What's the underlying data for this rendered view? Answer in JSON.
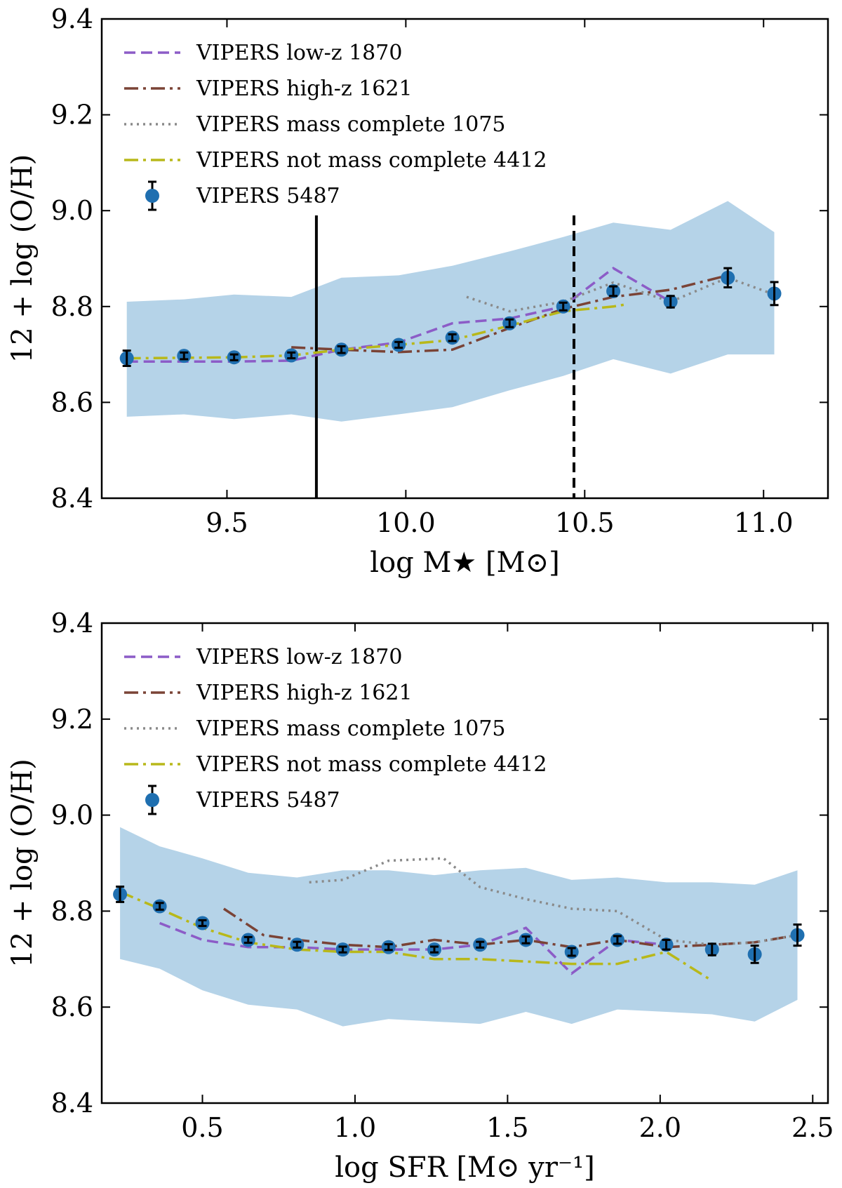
{
  "colors": {
    "low_z": "#8c5cc7",
    "high_z": "#7a4336",
    "mass_complete": "#8a8a8a",
    "not_mass_complete": "#b8b81a",
    "points": "#1f6fb0",
    "band": "#b5d3e8"
  },
  "chart_data": [
    {
      "type": "line",
      "xlabel": "log M★ [M⊙]",
      "ylabel": "12 + log (O/H)",
      "xlim": [
        9.15,
        11.18
      ],
      "ylim": [
        8.4,
        9.4
      ],
      "xticks": [
        9.5,
        10.0,
        10.5,
        11.0
      ],
      "xtick_labels": [
        "9.5",
        "10.0",
        "10.5",
        "11.0"
      ],
      "yticks": [
        8.4,
        8.6,
        8.8,
        9.0,
        9.2,
        9.4
      ],
      "ytick_labels": [
        "8.4",
        "8.6",
        "8.8",
        "9.0",
        "9.2",
        "9.4"
      ],
      "vlines": [
        {
          "x": 9.75,
          "style": "solid"
        },
        {
          "x": 10.47,
          "style": "dashed"
        }
      ],
      "legend": {
        "position": "upper-left",
        "entries": [
          "VIPERS low-z 1870",
          "VIPERS high-z 1621",
          "VIPERS mass complete 1075",
          "VIPERS not mass complete 4412",
          "VIPERS 5487"
        ]
      },
      "band": {
        "name": "scatter",
        "x": [
          9.22,
          9.38,
          9.52,
          9.68,
          9.82,
          9.98,
          10.13,
          10.29,
          10.44,
          10.58,
          10.74,
          10.9,
          11.03
        ],
        "upper": [
          8.81,
          8.815,
          8.825,
          8.82,
          8.86,
          8.865,
          8.885,
          8.915,
          8.945,
          8.975,
          8.96,
          9.02,
          8.955
        ],
        "lower": [
          8.57,
          8.575,
          8.565,
          8.575,
          8.56,
          8.575,
          8.59,
          8.625,
          8.655,
          8.69,
          8.66,
          8.7,
          8.7
        ]
      },
      "series": [
        {
          "name": "VIPERS low-z 1870",
          "style": "dashed",
          "colorKey": "low_z",
          "x": [
            9.22,
            9.38,
            9.52,
            9.68,
            9.82,
            9.98,
            10.13,
            10.29,
            10.44,
            10.58,
            10.74
          ],
          "y": [
            8.685,
            8.685,
            8.685,
            8.687,
            8.71,
            8.725,
            8.765,
            8.775,
            8.8,
            8.88,
            8.81
          ]
        },
        {
          "name": "VIPERS high-z 1621",
          "style": "dashdot",
          "colorKey": "high_z",
          "x": [
            9.68,
            9.82,
            9.98,
            10.13,
            10.29,
            10.44,
            10.58,
            10.74,
            10.9
          ],
          "y": [
            8.715,
            8.71,
            8.705,
            8.71,
            8.755,
            8.795,
            8.82,
            8.835,
            8.865
          ]
        },
        {
          "name": "VIPERS mass complete 1075",
          "style": "dotted",
          "colorKey": "mass_complete",
          "x": [
            10.17,
            10.29,
            10.44,
            10.58,
            10.74,
            10.9,
            11.03
          ],
          "y": [
            8.82,
            8.79,
            8.81,
            8.85,
            8.81,
            8.86,
            8.825
          ]
        },
        {
          "name": "VIPERS not mass complete 4412",
          "style": "dashdot",
          "colorKey": "not_mass_complete",
          "x": [
            9.22,
            9.38,
            9.52,
            9.68,
            9.82,
            9.98,
            10.13,
            10.29,
            10.44,
            10.58,
            10.62
          ],
          "y": [
            8.692,
            8.693,
            8.694,
            8.698,
            8.71,
            8.72,
            8.73,
            8.76,
            8.79,
            8.8,
            8.805
          ]
        }
      ],
      "points": {
        "name": "VIPERS 5487",
        "x": [
          9.22,
          9.38,
          9.52,
          9.68,
          9.82,
          9.98,
          10.13,
          10.29,
          10.44,
          10.58,
          10.74,
          10.9,
          11.03
        ],
        "y": [
          8.692,
          8.697,
          8.694,
          8.698,
          8.71,
          8.72,
          8.735,
          8.765,
          8.8,
          8.832,
          8.81,
          8.86,
          8.827
        ],
        "err": [
          0.016,
          0.007,
          0.006,
          0.006,
          0.007,
          0.006,
          0.007,
          0.008,
          0.008,
          0.01,
          0.012,
          0.02,
          0.024
        ]
      }
    },
    {
      "type": "line",
      "xlabel": "log SFR [M⊙ yr⁻¹]",
      "ylabel": "12 + log (O/H)",
      "xlim": [
        0.17,
        2.55
      ],
      "ylim": [
        8.4,
        9.4
      ],
      "xticks": [
        0.5,
        1.0,
        1.5,
        2.0,
        2.5
      ],
      "xtick_labels": [
        "0.5",
        "1.0",
        "1.5",
        "2.0",
        "2.5"
      ],
      "yticks": [
        8.4,
        8.6,
        8.8,
        9.0,
        9.2,
        9.4
      ],
      "ytick_labels": [
        "8.4",
        "8.6",
        "8.8",
        "9.0",
        "9.2",
        "9.4"
      ],
      "vlines": [],
      "legend": {
        "position": "upper-left",
        "entries": [
          "VIPERS low-z 1870",
          "VIPERS high-z 1621",
          "VIPERS mass complete 1075",
          "VIPERS not mass complete 4412",
          "VIPERS 5487"
        ]
      },
      "band": {
        "name": "scatter",
        "x": [
          0.23,
          0.36,
          0.5,
          0.65,
          0.81,
          0.96,
          1.11,
          1.26,
          1.41,
          1.56,
          1.71,
          1.86,
          2.02,
          2.17,
          2.31,
          2.45
        ],
        "upper": [
          8.975,
          8.935,
          8.91,
          8.88,
          8.87,
          8.885,
          8.885,
          8.875,
          8.885,
          8.89,
          8.865,
          8.87,
          8.86,
          8.86,
          8.855,
          8.885
        ],
        "lower": [
          8.7,
          8.68,
          8.635,
          8.605,
          8.595,
          8.56,
          8.575,
          8.57,
          8.565,
          8.59,
          8.565,
          8.595,
          8.59,
          8.585,
          8.57,
          8.615
        ]
      },
      "series": [
        {
          "name": "VIPERS low-z 1870",
          "style": "dashed",
          "colorKey": "low_z",
          "x": [
            0.36,
            0.5,
            0.65,
            0.81,
            0.96,
            1.11,
            1.26,
            1.41,
            1.56,
            1.71,
            1.86,
            2.02
          ],
          "y": [
            8.775,
            8.74,
            8.725,
            8.725,
            8.72,
            8.72,
            8.72,
            8.73,
            8.765,
            8.67,
            8.74,
            8.73
          ]
        },
        {
          "name": "VIPERS high-z 1621",
          "style": "dashdot",
          "colorKey": "high_z",
          "x": [
            0.57,
            0.7,
            0.81,
            0.96,
            1.11,
            1.26,
            1.41,
            1.56,
            1.71,
            1.86,
            2.02,
            2.17,
            2.31,
            2.45
          ],
          "y": [
            8.805,
            8.75,
            8.74,
            8.73,
            8.725,
            8.74,
            8.73,
            8.74,
            8.725,
            8.74,
            8.725,
            8.73,
            8.735,
            8.75
          ]
        },
        {
          "name": "VIPERS mass complete 1075",
          "style": "dotted",
          "colorKey": "mass_complete",
          "x": [
            0.85,
            0.96,
            1.11,
            1.29,
            1.41,
            1.56,
            1.71,
            1.86,
            2.02,
            2.17,
            2.31,
            2.45
          ],
          "y": [
            8.86,
            8.865,
            8.905,
            8.91,
            8.85,
            8.825,
            8.805,
            8.8,
            8.74,
            8.73,
            8.735,
            8.75
          ]
        },
        {
          "name": "VIPERS not mass complete 4412",
          "style": "dashdot",
          "colorKey": "not_mass_complete",
          "x": [
            0.23,
            0.36,
            0.5,
            0.65,
            0.81,
            0.96,
            1.11,
            1.26,
            1.41,
            1.56,
            1.71,
            1.86,
            2.02,
            2.17
          ],
          "y": [
            8.84,
            8.805,
            8.765,
            8.735,
            8.72,
            8.715,
            8.715,
            8.7,
            8.7,
            8.695,
            8.69,
            8.69,
            8.715,
            8.655
          ]
        }
      ],
      "points": {
        "name": "VIPERS 5487",
        "x": [
          0.23,
          0.36,
          0.5,
          0.65,
          0.81,
          0.96,
          1.11,
          1.26,
          1.41,
          1.56,
          1.71,
          1.86,
          2.02,
          2.17,
          2.31,
          2.45
        ],
        "y": [
          8.835,
          8.81,
          8.775,
          8.74,
          8.73,
          8.72,
          8.725,
          8.72,
          8.73,
          8.74,
          8.715,
          8.74,
          8.73,
          8.72,
          8.71,
          8.75
        ],
        "err": [
          0.016,
          0.007,
          0.006,
          0.006,
          0.006,
          0.006,
          0.006,
          0.006,
          0.006,
          0.007,
          0.008,
          0.008,
          0.01,
          0.012,
          0.018,
          0.022
        ]
      }
    }
  ]
}
